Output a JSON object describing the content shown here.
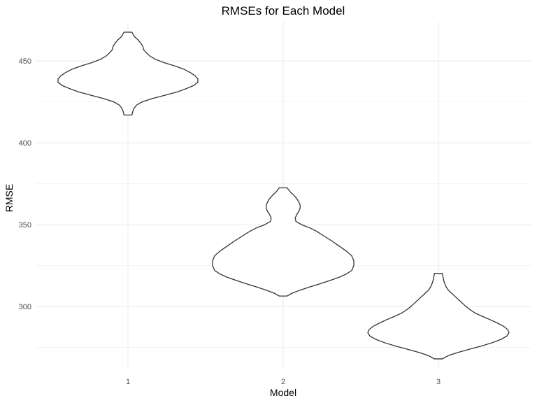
{
  "chart_data": {
    "type": "violin",
    "title": "RMSEs for Each Model",
    "xlabel": "Model",
    "ylabel": "RMSE",
    "categories": [
      "1",
      "2",
      "3"
    ],
    "ylim": [
      262,
      474
    ],
    "yticks": [
      300,
      350,
      400,
      450
    ],
    "grid": true,
    "legend": "none",
    "colors": {
      "outline": "#333333",
      "fill": "#ffffff",
      "grid": "#ebebeb",
      "text": "#4d4d4d"
    },
    "violins": [
      {
        "category": "1",
        "min": 417.0,
        "max": 467.6,
        "profile": [
          [
            417.0,
            0.056
          ],
          [
            419.0,
            0.067
          ],
          [
            421.0,
            0.085
          ],
          [
            423.0,
            0.12
          ],
          [
            425.0,
            0.2
          ],
          [
            427.0,
            0.34
          ],
          [
            429.0,
            0.52
          ],
          [
            431.0,
            0.69
          ],
          [
            433.0,
            0.82
          ],
          [
            435.0,
            0.93
          ],
          [
            437.0,
            0.99
          ],
          [
            439.0,
            0.99
          ],
          [
            441.0,
            0.95
          ],
          [
            443.0,
            0.88
          ],
          [
            445.0,
            0.79
          ],
          [
            447.0,
            0.66
          ],
          [
            449.0,
            0.51
          ],
          [
            451.0,
            0.39
          ],
          [
            453.0,
            0.31
          ],
          [
            455.0,
            0.26
          ],
          [
            457.0,
            0.22
          ],
          [
            459.0,
            0.21
          ],
          [
            461.0,
            0.18
          ],
          [
            463.0,
            0.14
          ],
          [
            465.0,
            0.09
          ],
          [
            467.6,
            0.056
          ]
        ]
      },
      {
        "category": "2",
        "min": 306.4,
        "max": 372.5,
        "profile": [
          [
            306.4,
            0.056
          ],
          [
            308.0,
            0.12
          ],
          [
            310.0,
            0.24
          ],
          [
            312.0,
            0.38
          ],
          [
            314.0,
            0.53
          ],
          [
            316.0,
            0.67
          ],
          [
            318.0,
            0.8
          ],
          [
            320.0,
            0.9
          ],
          [
            322.0,
            0.97
          ],
          [
            325.0,
            1.0
          ],
          [
            328.0,
            1.0
          ],
          [
            331.0,
            0.97
          ],
          [
            334.0,
            0.89
          ],
          [
            337.0,
            0.79
          ],
          [
            340.0,
            0.69
          ],
          [
            343.0,
            0.58
          ],
          [
            346.0,
            0.47
          ],
          [
            348.0,
            0.38
          ],
          [
            350.0,
            0.26
          ],
          [
            352.0,
            0.18
          ],
          [
            354.0,
            0.17
          ],
          [
            356.0,
            0.19
          ],
          [
            358.0,
            0.22
          ],
          [
            360.0,
            0.24
          ],
          [
            362.0,
            0.24
          ],
          [
            364.0,
            0.22
          ],
          [
            366.0,
            0.19
          ],
          [
            368.0,
            0.15
          ],
          [
            370.0,
            0.1
          ],
          [
            372.5,
            0.056
          ]
        ]
      },
      {
        "category": "3",
        "min": 268.0,
        "max": 320.2,
        "profile": [
          [
            268.0,
            0.056
          ],
          [
            270.0,
            0.14
          ],
          [
            272.0,
            0.28
          ],
          [
            274.0,
            0.45
          ],
          [
            276.0,
            0.62
          ],
          [
            278.0,
            0.77
          ],
          [
            280.0,
            0.89
          ],
          [
            282.0,
            0.97
          ],
          [
            284.0,
            1.0
          ],
          [
            286.0,
            0.98
          ],
          [
            288.0,
            0.92
          ],
          [
            290.0,
            0.83
          ],
          [
            292.0,
            0.73
          ],
          [
            294.0,
            0.62
          ],
          [
            296.0,
            0.52
          ],
          [
            298.0,
            0.45
          ],
          [
            300.0,
            0.39
          ],
          [
            302.0,
            0.34
          ],
          [
            304.0,
            0.29
          ],
          [
            306.0,
            0.24
          ],
          [
            308.0,
            0.19
          ],
          [
            310.0,
            0.14
          ],
          [
            312.0,
            0.11
          ],
          [
            314.0,
            0.09
          ],
          [
            316.0,
            0.075
          ],
          [
            318.0,
            0.065
          ],
          [
            320.2,
            0.056
          ]
        ]
      }
    ]
  }
}
